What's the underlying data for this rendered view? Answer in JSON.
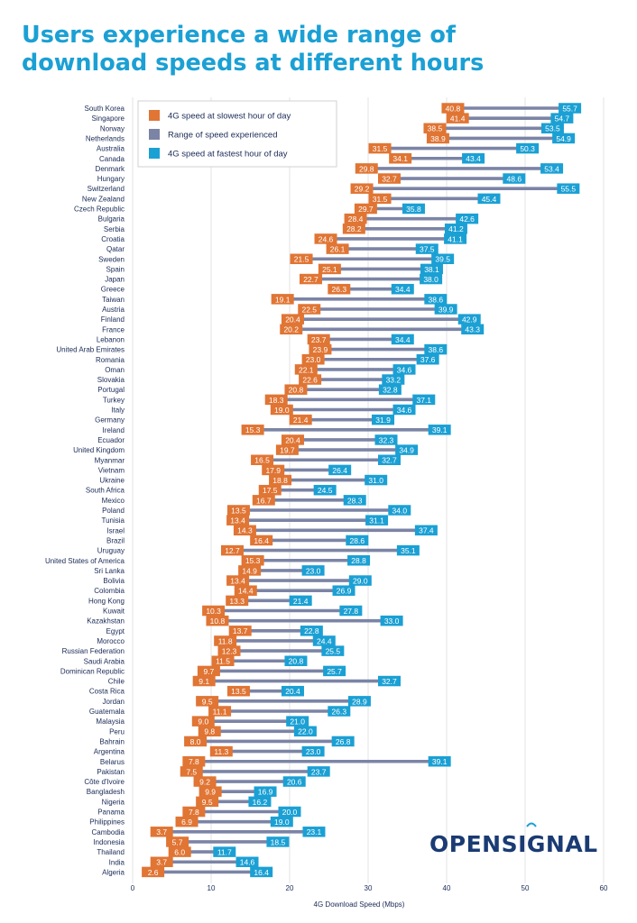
{
  "title_lines": [
    "Users experience a wide range of",
    "download speeds at different hours"
  ],
  "logo": "OPENSIGNAL",
  "colors": {
    "slowest": "#e07534",
    "range": "#7b84a5",
    "fastest": "#1ba0d4",
    "title": "#1ba0d4",
    "text": "#1a2b57"
  },
  "chart_data": {
    "type": "range-dot",
    "xlabel": "4G Download Speed (Mbps)",
    "xlim": [
      0,
      60
    ],
    "xticks": [
      0,
      10,
      20,
      30,
      40,
      50,
      60
    ],
    "grid": true,
    "legend_position": "top-left",
    "series": [
      {
        "name": "4G speed at slowest hour of day",
        "key": "slowest"
      },
      {
        "name": "Range of speed experienced",
        "key": "range"
      },
      {
        "name": "4G speed at fastest hour of day",
        "key": "fastest"
      }
    ],
    "countries": [
      {
        "name": "South Korea",
        "slowest": 40.8,
        "fastest": 55.7
      },
      {
        "name": "Singapore",
        "slowest": 41.4,
        "fastest": 54.7
      },
      {
        "name": "Norway",
        "slowest": 38.5,
        "fastest": 53.5
      },
      {
        "name": "Netherlands",
        "slowest": 38.9,
        "fastest": 54.9
      },
      {
        "name": "Australia",
        "slowest": 31.5,
        "fastest": 50.3
      },
      {
        "name": "Canada",
        "slowest": 34.1,
        "fastest": 43.4
      },
      {
        "name": "Denmark",
        "slowest": 29.8,
        "fastest": 53.4
      },
      {
        "name": "Hungary",
        "slowest": 32.7,
        "fastest": 48.6
      },
      {
        "name": "Switzerland",
        "slowest": 29.2,
        "fastest": 55.5
      },
      {
        "name": "New Zealand",
        "slowest": 31.5,
        "fastest": 45.4
      },
      {
        "name": "Czech Republic",
        "slowest": 29.7,
        "fastest": 35.8
      },
      {
        "name": "Bulgaria",
        "slowest": 28.4,
        "fastest": 42.6
      },
      {
        "name": "Serbia",
        "slowest": 28.2,
        "fastest": 41.2
      },
      {
        "name": "Croatia",
        "slowest": 24.6,
        "fastest": 41.1
      },
      {
        "name": "Qatar",
        "slowest": 26.1,
        "fastest": 37.5
      },
      {
        "name": "Sweden",
        "slowest": 21.5,
        "fastest": 39.5
      },
      {
        "name": "Spain",
        "slowest": 25.1,
        "fastest": 38.1
      },
      {
        "name": "Japan",
        "slowest": 22.7,
        "fastest": 38.0
      },
      {
        "name": "Greece",
        "slowest": 26.3,
        "fastest": 34.4
      },
      {
        "name": "Taiwan",
        "slowest": 19.1,
        "fastest": 38.6
      },
      {
        "name": "Austria",
        "slowest": 22.5,
        "fastest": 39.9
      },
      {
        "name": "Finland",
        "slowest": 20.4,
        "fastest": 42.9
      },
      {
        "name": "France",
        "slowest": 20.2,
        "fastest": 43.3
      },
      {
        "name": "Lebanon",
        "slowest": 23.7,
        "fastest": 34.4
      },
      {
        "name": "United Arab Emirates",
        "slowest": 23.9,
        "fastest": 38.6
      },
      {
        "name": "Romania",
        "slowest": 23.0,
        "fastest": 37.6
      },
      {
        "name": "Oman",
        "slowest": 22.1,
        "fastest": 34.6
      },
      {
        "name": "Slovakia",
        "slowest": 22.6,
        "fastest": 33.2
      },
      {
        "name": "Portugal",
        "slowest": 20.8,
        "fastest": 32.8
      },
      {
        "name": "Turkey",
        "slowest": 18.3,
        "fastest": 37.1
      },
      {
        "name": "Italy",
        "slowest": 19.0,
        "fastest": 34.6
      },
      {
        "name": "Germany",
        "slowest": 21.4,
        "fastest": 31.9
      },
      {
        "name": "Ireland",
        "slowest": 15.3,
        "fastest": 39.1
      },
      {
        "name": "Ecuador",
        "slowest": 20.4,
        "fastest": 32.3
      },
      {
        "name": "United Kingdom",
        "slowest": 19.7,
        "fastest": 34.9
      },
      {
        "name": "Myanmar",
        "slowest": 16.5,
        "fastest": 32.7
      },
      {
        "name": "Vietnam",
        "slowest": 17.9,
        "fastest": 26.4
      },
      {
        "name": "Ukraine",
        "slowest": 18.8,
        "fastest": 31.0
      },
      {
        "name": "South Africa",
        "slowest": 17.5,
        "fastest": 24.5
      },
      {
        "name": "Mexico",
        "slowest": 16.7,
        "fastest": 28.3
      },
      {
        "name": "Poland",
        "slowest": 13.5,
        "fastest": 34.0
      },
      {
        "name": "Tunisia",
        "slowest": 13.4,
        "fastest": 31.1
      },
      {
        "name": "Israel",
        "slowest": 14.3,
        "fastest": 37.4
      },
      {
        "name": "Brazil",
        "slowest": 16.4,
        "fastest": 28.6
      },
      {
        "name": "Uruguay",
        "slowest": 12.7,
        "fastest": 35.1
      },
      {
        "name": "United States of America",
        "slowest": 15.3,
        "fastest": 28.8
      },
      {
        "name": "Sri Lanka",
        "slowest": 14.9,
        "fastest": 23.0
      },
      {
        "name": "Bolivia",
        "slowest": 13.4,
        "fastest": 29.0
      },
      {
        "name": "Colombia",
        "slowest": 14.4,
        "fastest": 26.9
      },
      {
        "name": "Hong Kong",
        "slowest": 13.3,
        "fastest": 21.4
      },
      {
        "name": "Kuwait",
        "slowest": 10.3,
        "fastest": 27.8
      },
      {
        "name": "Kazakhstan",
        "slowest": 10.8,
        "fastest": 33.0
      },
      {
        "name": "Egypt",
        "slowest": 13.7,
        "fastest": 22.8
      },
      {
        "name": "Morocco",
        "slowest": 11.8,
        "fastest": 24.4
      },
      {
        "name": "Russian Federation",
        "slowest": 12.3,
        "fastest": 25.5
      },
      {
        "name": "Saudi Arabia",
        "slowest": 11.5,
        "fastest": 20.8
      },
      {
        "name": "Dominican Republic",
        "slowest": 9.7,
        "fastest": 25.7
      },
      {
        "name": "Chile",
        "slowest": 9.1,
        "fastest": 32.7
      },
      {
        "name": "Costa Rica",
        "slowest": 13.5,
        "fastest": 20.4
      },
      {
        "name": "Jordan",
        "slowest": 9.5,
        "fastest": 28.9
      },
      {
        "name": "Guatemala",
        "slowest": 11.1,
        "fastest": 26.3
      },
      {
        "name": "Malaysia",
        "slowest": 9.0,
        "fastest": 21.0
      },
      {
        "name": "Peru",
        "slowest": 9.8,
        "fastest": 22.0
      },
      {
        "name": "Bahrain",
        "slowest": 8.0,
        "fastest": 26.8
      },
      {
        "name": "Argentina",
        "slowest": 11.3,
        "fastest": 23.0
      },
      {
        "name": "Belarus",
        "slowest": 7.8,
        "fastest": 39.1
      },
      {
        "name": "Pakistan",
        "slowest": 7.5,
        "fastest": 23.7
      },
      {
        "name": "Côte d'Ivoire",
        "slowest": 9.2,
        "fastest": 20.6
      },
      {
        "name": "Bangladesh",
        "slowest": 9.9,
        "fastest": 16.9
      },
      {
        "name": "Nigeria",
        "slowest": 9.5,
        "fastest": 16.2
      },
      {
        "name": "Panama",
        "slowest": 7.8,
        "fastest": 20.0
      },
      {
        "name": "Philippines",
        "slowest": 6.9,
        "fastest": 19.0
      },
      {
        "name": "Cambodia",
        "slowest": 3.7,
        "fastest": 23.1
      },
      {
        "name": "Indonesia",
        "slowest": 5.7,
        "fastest": 18.5
      },
      {
        "name": "Thailand",
        "slowest": 6.0,
        "fastest": 11.7
      },
      {
        "name": "India",
        "slowest": 3.7,
        "fastest": 14.6
      },
      {
        "name": "Algeria",
        "slowest": 2.6,
        "fastest": 16.4
      }
    ]
  }
}
